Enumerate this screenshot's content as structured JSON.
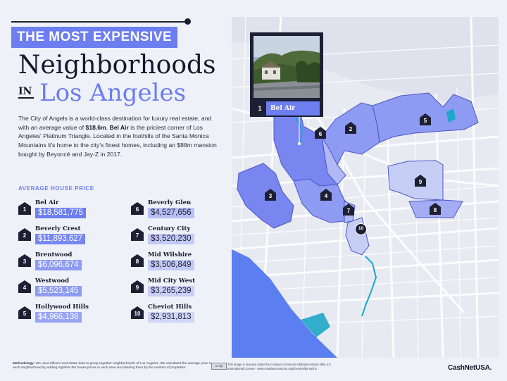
{
  "header": {
    "banner": "THE MOST EXPENSIVE",
    "title_main": "Neighborhoods",
    "title_in": "IN",
    "title_city": "Los Angeles"
  },
  "intro": {
    "part1": "The City of Angels is a world-class destination for luxury real estate, and with an average value of ",
    "highlight_value": "$18.6m",
    "part2": ", ",
    "highlight_name": "Bel Air",
    "part3": " is the priciest corner of Los Angeles' Platinum Triangle. Located in the foothills of the Santa Monica Mountains it's home to the city's finest homes, including an $88m mansion bought by Beyoncé and Jay-Z in 2017."
  },
  "section_label": "AVERAGE HOUSE PRICE",
  "neighborhoods": [
    {
      "rank": "1",
      "name": "Bel Air",
      "price": "$18,581,775",
      "value": 18581775
    },
    {
      "rank": "2",
      "name": "Beverly Crest",
      "price": "$11,893,627",
      "value": 11893627
    },
    {
      "rank": "3",
      "name": "Brentwood",
      "price": "$6,096,674",
      "value": 6096674
    },
    {
      "rank": "4",
      "name": "Westwood",
      "price": "$5,523,145",
      "value": 5523145
    },
    {
      "rank": "5",
      "name": "Hollywood Hills",
      "price": "$4,966,136",
      "value": 4966136
    },
    {
      "rank": "6",
      "name": "Beverly Glen",
      "price": "$4,527,656",
      "value": 4527656
    },
    {
      "rank": "7",
      "name": "Century City",
      "price": "$3,520,230",
      "value": 3520230
    },
    {
      "rank": "8",
      "name": "Mid Wilshire",
      "price": "$3,506,849",
      "value": 3506849
    },
    {
      "rank": "9",
      "name": "Mid City West",
      "price": "$3,265,239",
      "value": 3265239
    },
    {
      "rank": "10",
      "name": "Cheviot Hills",
      "price": "$2,931,813",
      "value": 2931813
    }
  ],
  "map": {
    "photo_number": "1",
    "photo_label": "Bel Air",
    "markers": [
      "1",
      "2",
      "3",
      "4",
      "5",
      "6",
      "7",
      "8",
      "9",
      "10"
    ]
  },
  "footer": {
    "methodology_label": "Methodology:",
    "methodology_text": "We used Zillow's real estate data to group together neighborhoods of Los Angeles. We calculated the average price in each neighborhood by adding together the house prices in each area and dividing them by the number of properties.",
    "license_badge": "cc by",
    "license_text": "This image is licensed under the Creative Commons Attribution-Share Alike 4.0 International License - www.creativecommons.org/licenses/by-sa/4.0",
    "brand": "CashNetUSA."
  },
  "colors": {
    "accent": "#6d7ef0",
    "dark": "#1d1f33",
    "price_top": "#6d7ef0",
    "price_mid": "#8e9bf2",
    "price_low": "#b7c0f5",
    "region_dark": "#7a86f0",
    "region_light": "#c7cef6",
    "water": "#5b7ff0",
    "teal": "#1ea7c8"
  },
  "icons": [
    "house-marker-icon",
    "camera-photo-icon"
  ]
}
